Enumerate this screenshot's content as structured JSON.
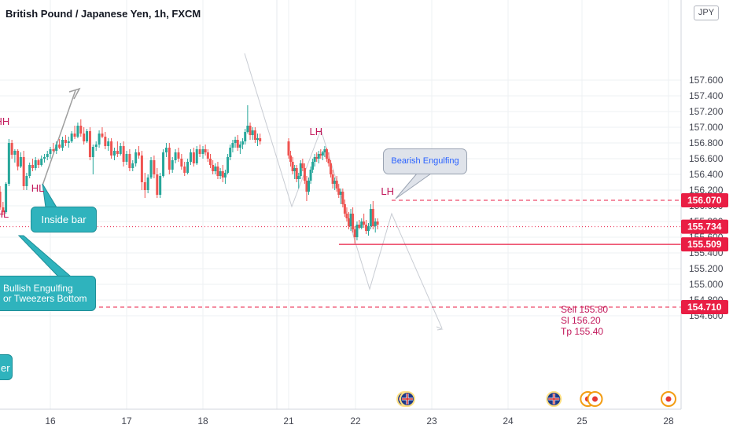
{
  "title": "British Pound / Japanese Yen, 1h, FXCM",
  "currency": "JPY",
  "colors": {
    "up": "#26a69a",
    "down": "#ef5350",
    "grid": "#eef0f3",
    "axis_text": "#434651",
    "annotation": "#c2185b",
    "callout_teal": "#2fb3bd",
    "price_line": "#e91e44"
  },
  "chart_data": {
    "type": "candlestick",
    "title": "British Pound / Japanese Yen, 1h, FXCM",
    "y_range": [
      154.6,
      157.6
    ],
    "y_ticks": [
      "157.600",
      "157.400",
      "157.200",
      "157.000",
      "156.800",
      "156.600",
      "156.400",
      "156.200",
      "156.000",
      "155.800",
      "155.600",
      "155.400",
      "155.200",
      "155.000",
      "154.800",
      "154.600"
    ],
    "x_ticks": [
      "16",
      "17",
      "18",
      "21",
      "22",
      "23",
      "24",
      "25",
      "28"
    ],
    "price_labels": [
      {
        "value": 156.07,
        "text": "156.070",
        "style": "dashed"
      },
      {
        "value": 155.734,
        "text": "155.734",
        "style": "dotted"
      },
      {
        "value": 155.509,
        "text": "155.509",
        "style": "solid"
      },
      {
        "value": 154.71,
        "text": "154.710",
        "style": "dashed"
      }
    ],
    "pattern_labels": [
      {
        "text": "HH",
        "price": 157.03,
        "day": 15.35
      },
      {
        "text": "HL",
        "price": 156.18,
        "day": 15.83
      },
      {
        "text": "HL",
        "price": 155.85,
        "day": 15.35
      },
      {
        "text": "LH",
        "price": 156.9,
        "day": 21.41
      },
      {
        "text": "LH",
        "price": 156.14,
        "day": 22.42
      }
    ],
    "candles": [
      [
        15.28,
        156.05,
        156.22,
        156.01,
        156.18
      ],
      [
        15.32,
        156.18,
        156.25,
        155.95,
        155.98
      ],
      [
        15.36,
        155.98,
        156.05,
        155.88,
        155.92
      ],
      [
        15.4,
        155.92,
        156.3,
        155.9,
        156.28
      ],
      [
        15.44,
        156.28,
        156.85,
        156.25,
        156.8
      ],
      [
        15.48,
        156.8,
        156.84,
        156.6,
        156.65
      ],
      [
        15.52,
        156.65,
        156.72,
        156.55,
        156.7
      ],
      [
        15.56,
        156.7,
        156.72,
        156.45,
        156.5
      ],
      [
        15.6,
        156.5,
        156.68,
        156.48,
        156.62
      ],
      [
        15.64,
        156.62,
        156.7,
        156.2,
        156.25
      ],
      [
        15.68,
        156.25,
        156.42,
        156.2,
        156.38
      ],
      [
        15.72,
        156.38,
        156.55,
        156.35,
        156.52
      ],
      [
        15.76,
        156.52,
        156.6,
        156.44,
        156.48
      ],
      [
        15.8,
        156.48,
        156.62,
        156.45,
        156.58
      ],
      [
        15.84,
        156.58,
        156.6,
        156.48,
        156.52
      ],
      [
        15.88,
        156.52,
        156.64,
        156.5,
        156.6
      ],
      [
        15.92,
        156.6,
        156.66,
        156.55,
        156.62
      ],
      [
        15.96,
        156.62,
        156.7,
        156.58,
        156.66
      ],
      [
        16.0,
        156.66,
        156.75,
        156.6,
        156.72
      ],
      [
        16.04,
        156.72,
        156.8,
        156.68,
        156.7
      ],
      [
        16.08,
        156.7,
        156.82,
        156.66,
        156.78
      ],
      [
        16.12,
        156.78,
        156.85,
        156.72,
        156.74
      ],
      [
        16.16,
        156.74,
        156.88,
        156.7,
        156.84
      ],
      [
        16.2,
        156.84,
        156.9,
        156.76,
        156.8
      ],
      [
        16.24,
        156.8,
        156.88,
        156.74,
        156.82
      ],
      [
        16.28,
        156.82,
        156.95,
        156.8,
        156.92
      ],
      [
        16.32,
        156.92,
        157.02,
        156.85,
        156.88
      ],
      [
        16.36,
        156.88,
        157.06,
        156.86,
        157.02
      ],
      [
        16.4,
        157.02,
        157.1,
        156.88,
        156.92
      ],
      [
        16.44,
        156.92,
        157.0,
        156.78,
        156.82
      ],
      [
        16.48,
        156.82,
        156.98,
        156.8,
        156.95
      ],
      [
        16.52,
        156.95,
        157.0,
        156.58,
        156.62
      ],
      [
        16.56,
        156.62,
        156.78,
        156.4,
        156.75
      ],
      [
        16.6,
        156.75,
        156.82,
        156.7,
        156.78
      ],
      [
        16.64,
        156.78,
        156.96,
        156.74,
        156.92
      ],
      [
        16.68,
        156.92,
        157.0,
        156.86,
        156.88
      ],
      [
        16.72,
        156.88,
        156.94,
        156.72,
        156.76
      ],
      [
        16.76,
        156.76,
        156.86,
        156.7,
        156.82
      ],
      [
        16.8,
        156.82,
        156.86,
        156.6,
        156.64
      ],
      [
        16.84,
        156.64,
        156.74,
        156.58,
        156.7
      ],
      [
        16.88,
        156.7,
        156.82,
        156.62,
        156.66
      ],
      [
        16.92,
        156.66,
        156.8,
        156.64,
        156.76
      ],
      [
        16.96,
        156.76,
        156.82,
        156.5,
        156.56
      ],
      [
        17.0,
        156.56,
        156.7,
        156.52,
        156.66
      ],
      [
        17.04,
        156.66,
        156.72,
        156.44,
        156.48
      ],
      [
        17.08,
        156.48,
        156.58,
        156.44,
        156.54
      ],
      [
        17.12,
        156.54,
        156.72,
        156.5,
        156.68
      ],
      [
        17.16,
        156.68,
        156.76,
        156.6,
        156.64
      ],
      [
        17.2,
        156.64,
        156.7,
        156.2,
        156.3
      ],
      [
        17.24,
        156.3,
        156.42,
        156.1,
        156.2
      ],
      [
        17.28,
        156.2,
        156.4,
        156.16,
        156.36
      ],
      [
        17.32,
        156.36,
        156.62,
        156.34,
        156.58
      ],
      [
        17.36,
        156.58,
        156.64,
        156.35,
        156.4
      ],
      [
        17.4,
        156.4,
        156.48,
        156.1,
        156.14
      ],
      [
        17.44,
        156.14,
        156.42,
        156.1,
        156.38
      ],
      [
        17.48,
        156.38,
        156.72,
        156.36,
        156.68
      ],
      [
        17.52,
        156.68,
        156.8,
        156.62,
        156.74
      ],
      [
        17.56,
        156.74,
        156.8,
        156.4,
        156.46
      ],
      [
        17.6,
        156.46,
        156.62,
        156.42,
        156.58
      ],
      [
        17.64,
        156.58,
        156.72,
        156.54,
        156.68
      ],
      [
        17.68,
        156.68,
        156.74,
        156.56,
        156.6
      ],
      [
        17.72,
        156.6,
        156.66,
        156.46,
        156.5
      ],
      [
        17.76,
        156.5,
        156.56,
        156.38,
        156.42
      ],
      [
        17.8,
        156.42,
        156.6,
        156.4,
        156.56
      ],
      [
        17.84,
        156.56,
        156.72,
        156.52,
        156.68
      ],
      [
        17.88,
        156.68,
        156.74,
        156.5,
        156.54
      ],
      [
        17.92,
        156.54,
        156.76,
        156.52,
        156.72
      ],
      [
        17.96,
        156.72,
        156.78,
        156.62,
        156.66
      ],
      [
        18.0,
        156.66,
        156.76,
        156.6,
        156.72
      ],
      [
        18.04,
        156.72,
        156.78,
        156.64,
        156.68
      ],
      [
        18.08,
        156.68,
        156.72,
        156.56,
        156.6
      ],
      [
        18.12,
        156.6,
        156.66,
        156.48,
        156.52
      ],
      [
        18.16,
        156.52,
        156.58,
        156.4,
        156.44
      ],
      [
        18.2,
        156.44,
        156.54,
        156.4,
        156.5
      ],
      [
        18.24,
        156.5,
        156.56,
        156.34,
        156.38
      ],
      [
        18.28,
        156.38,
        156.48,
        156.34,
        156.44
      ],
      [
        18.32,
        156.44,
        156.52,
        156.3,
        156.36
      ],
      [
        18.36,
        156.36,
        156.46,
        156.28,
        156.42
      ],
      [
        18.4,
        156.42,
        156.66,
        156.4,
        156.62
      ],
      [
        18.44,
        156.62,
        156.78,
        156.58,
        156.74
      ],
      [
        18.48,
        156.74,
        156.84,
        156.68,
        156.8
      ],
      [
        18.52,
        156.8,
        156.88,
        156.74,
        156.84
      ],
      [
        18.56,
        156.84,
        156.9,
        156.7,
        156.74
      ],
      [
        18.6,
        156.74,
        156.82,
        156.66,
        156.78
      ],
      [
        18.64,
        156.78,
        156.86,
        156.72,
        156.82
      ],
      [
        18.68,
        156.82,
        156.98,
        156.78,
        156.94
      ],
      [
        18.72,
        156.94,
        157.28,
        156.92,
        157.02
      ],
      [
        18.76,
        157.02,
        157.06,
        156.84,
        156.9
      ],
      [
        18.8,
        156.9,
        157.0,
        156.84,
        156.96
      ],
      [
        18.84,
        156.96,
        157.0,
        156.8,
        156.84
      ],
      [
        18.88,
        156.84,
        156.92,
        156.76,
        156.86
      ],
      [
        18.92,
        156.86,
        156.92,
        156.78,
        156.82
      ],
      [
        21.0,
        156.82,
        156.86,
        156.6,
        156.64
      ],
      [
        21.03,
        156.64,
        156.7,
        156.5,
        156.56
      ],
      [
        21.06,
        156.56,
        156.62,
        156.4,
        156.44
      ],
      [
        21.09,
        156.44,
        156.52,
        156.34,
        156.48
      ],
      [
        21.12,
        156.48,
        156.52,
        156.3,
        156.34
      ],
      [
        21.15,
        156.34,
        156.42,
        156.22,
        156.38
      ],
      [
        21.18,
        156.38,
        156.58,
        156.34,
        156.54
      ],
      [
        21.21,
        156.54,
        156.6,
        156.44,
        156.48
      ],
      [
        21.24,
        156.48,
        156.54,
        156.28,
        156.32
      ],
      [
        21.27,
        156.32,
        156.38,
        156.06,
        156.18
      ],
      [
        21.3,
        156.18,
        156.36,
        156.14,
        156.32
      ],
      [
        21.33,
        156.32,
        156.5,
        156.28,
        156.46
      ],
      [
        21.36,
        156.46,
        156.6,
        156.42,
        156.56
      ],
      [
        21.39,
        156.56,
        156.66,
        156.5,
        156.62
      ],
      [
        21.42,
        156.62,
        156.68,
        156.56,
        156.6
      ],
      [
        21.45,
        156.6,
        156.7,
        156.54,
        156.66
      ],
      [
        21.48,
        156.66,
        156.72,
        156.6,
        156.64
      ],
      [
        21.51,
        156.64,
        156.7,
        156.58,
        156.68
      ],
      [
        21.54,
        156.68,
        156.76,
        156.62,
        156.72
      ],
      [
        21.57,
        156.72,
        156.74,
        156.56,
        156.6
      ],
      [
        21.6,
        156.6,
        156.68,
        156.5,
        156.54
      ],
      [
        21.63,
        156.54,
        156.58,
        156.36,
        156.4
      ],
      [
        21.66,
        156.4,
        156.46,
        156.22,
        156.28
      ],
      [
        21.69,
        156.28,
        156.36,
        156.2,
        156.32
      ],
      [
        21.72,
        156.32,
        156.38,
        156.18,
        156.22
      ],
      [
        21.75,
        156.22,
        156.28,
        156.1,
        156.14
      ],
      [
        21.78,
        156.14,
        156.22,
        156.02,
        156.18
      ],
      [
        21.81,
        156.18,
        156.22,
        155.98,
        156.02
      ],
      [
        21.84,
        156.02,
        156.08,
        155.86,
        155.9
      ],
      [
        21.87,
        155.9,
        155.98,
        155.8,
        155.84
      ],
      [
        21.9,
        155.84,
        155.92,
        155.7,
        155.74
      ],
      [
        21.93,
        155.74,
        155.96,
        155.68,
        155.9
      ],
      [
        21.96,
        155.9,
        155.98,
        155.66,
        155.7
      ],
      [
        21.99,
        155.7,
        155.74,
        155.52,
        155.6
      ],
      [
        22.02,
        155.6,
        155.8,
        155.56,
        155.76
      ],
      [
        22.05,
        155.76,
        155.82,
        155.7,
        155.72
      ],
      [
        22.08,
        155.72,
        155.84,
        155.7,
        155.8
      ],
      [
        22.11,
        155.8,
        155.9,
        155.72,
        155.76
      ],
      [
        22.14,
        155.76,
        155.82,
        155.64,
        155.68
      ],
      [
        22.17,
        155.68,
        155.78,
        155.62,
        155.74
      ],
      [
        22.2,
        155.74,
        156.02,
        155.7,
        155.96
      ],
      [
        22.23,
        155.96,
        156.06,
        155.7,
        155.74
      ],
      [
        22.26,
        155.74,
        155.84,
        155.66,
        155.8
      ],
      [
        22.29,
        155.8,
        155.84,
        155.7,
        155.76
      ]
    ]
  },
  "callouts": {
    "inside_bar": "Inside bar",
    "bullish_line1": "Bullish Engulfing",
    "bullish_line2": "or Tweezers Bottom",
    "partial": "er",
    "bearish": "Bearish Engulfing"
  },
  "trade_note": {
    "sell": "Sell 155.80",
    "sl": "Sl 156.20",
    "tp": "Tp 155.40"
  },
  "events": [
    {
      "day": 22.64,
      "kind": "flag"
    },
    {
      "day": 22.68,
      "kind": "flag"
    },
    {
      "day": 24.62,
      "kind": "flag"
    },
    {
      "day": 25.2,
      "kind": "dot"
    },
    {
      "day": 25.45,
      "kind": "dot"
    },
    {
      "day": 28.0,
      "kind": "dot"
    }
  ]
}
